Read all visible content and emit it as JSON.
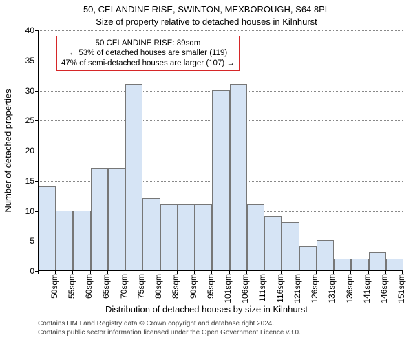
{
  "chart": {
    "type": "histogram",
    "title_main": "50, CELANDINE RISE, SWINTON, MEXBOROUGH, S64 8PL",
    "title_sub": "Size of property relative to detached houses in Kilnhurst",
    "y_axis_label": "Number of detached properties",
    "x_axis_label": "Distribution of detached houses by size in Kilnhurst",
    "background_color": "#ffffff",
    "bar_fill_color": "#d6e4f5",
    "bar_border_color": "#777777",
    "grid_color": "#888888",
    "ref_line_color": "#d62728",
    "annotation_border_color": "#d62728",
    "title_fontsize": 13,
    "axis_label_fontsize": 13,
    "tick_fontsize": 12,
    "ylim": [
      0,
      40
    ],
    "ytick_step": 5,
    "yticks": [
      0,
      5,
      10,
      15,
      20,
      25,
      30,
      35,
      40
    ],
    "x_categories": [
      "50sqm",
      "55sqm",
      "60sqm",
      "65sqm",
      "70sqm",
      "75sqm",
      "80sqm",
      "85sqm",
      "90sqm",
      "95sqm",
      "101sqm",
      "106sqm",
      "111sqm",
      "116sqm",
      "121sqm",
      "126sqm",
      "131sqm",
      "136sqm",
      "141sqm",
      "146sqm",
      "151sqm"
    ],
    "values": [
      14,
      10,
      10,
      17,
      17,
      31,
      12,
      11,
      11,
      11,
      30,
      31,
      11,
      9,
      8,
      4,
      5,
      2,
      2,
      3,
      2
    ],
    "reference_line_x_category": "90sqm",
    "annotation": {
      "line1": "50 CELANDINE RISE: 89sqm",
      "line2": "← 53% of detached houses are smaller (119)",
      "line3": "47% of semi-detached houses are larger (107) →"
    }
  },
  "attribution": {
    "line1": "Contains HM Land Registry data © Crown copyright and database right 2024.",
    "line2": "Contains public sector information licensed under the Open Government Licence v3.0."
  }
}
